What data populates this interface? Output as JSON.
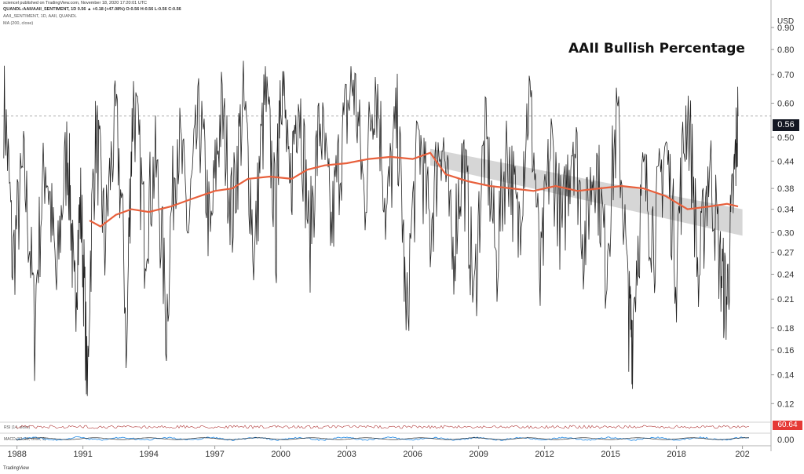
{
  "header": {
    "line1": "sciencel published on TradingView.com, November 18, 2020 17:20:01 UTC",
    "line2": "QUANDL:AAII/AAII_SENTIMENT, 1D  0.56 ▲ +0.18 (+47.08%) O:0.56 H:0.56 L:0.56 C:0.56",
    "line3": "AAII_SENTIMENT, 1D, AAII, QUANDL",
    "line4": "MA (200, close)"
  },
  "price_axis": {
    "currency": "USD",
    "current_value": "0.56",
    "ticks": [
      "0.90",
      "0.80",
      "0.70",
      "0.60",
      "0.50",
      "0.44",
      "0.38",
      "0.34",
      "0.30",
      "0.27",
      "0.24",
      "0.21",
      "0.18",
      "0.16",
      "0.14",
      "0.12"
    ]
  },
  "rsi": {
    "label": "RSI (14, close)",
    "value": "60.64"
  },
  "macd": {
    "label": "MACD (12, 26, close, 9)",
    "zero": "0.00"
  },
  "footer": {
    "logo": "TradingView"
  },
  "colors": {
    "price": "#222222",
    "ma": "#e8603c",
    "channel": "#c8c8c8",
    "rsi": "#b23a3a",
    "macd": "#1e88e5"
  },
  "chart_data": {
    "type": "line",
    "title": "AAII Bullish Percentage",
    "x_ticks": [
      "1988",
      "1991",
      "1994",
      "1997",
      "2000",
      "2003",
      "2006",
      "2009",
      "2012",
      "2015",
      "2018",
      "202"
    ],
    "x_range": [
      1987.3,
      2022.3
    ],
    "y_range": [
      0.11,
      1.0
    ],
    "y_scale": "log",
    "series": [
      {
        "name": "MA (200, close)",
        "x": [
          1991.3,
          1991.8,
          1992.5,
          1993.2,
          1994.0,
          1995.0,
          1996.0,
          1997.0,
          1997.8,
          1998.5,
          1999.5,
          2000.5,
          2001.2,
          2002.0,
          2003.0,
          2004.0,
          2005.0,
          2006.0,
          2006.8,
          2007.5,
          2008.5,
          2009.5,
          2010.5,
          2011.5,
          2012.5,
          2013.5,
          2014.5,
          2015.5,
          2016.5,
          2017.5,
          2018.5,
          2019.5,
          2020.3,
          2020.8
        ],
        "y": [
          0.32,
          0.31,
          0.33,
          0.34,
          0.335,
          0.345,
          0.36,
          0.375,
          0.38,
          0.4,
          0.405,
          0.4,
          0.42,
          0.43,
          0.435,
          0.445,
          0.45,
          0.445,
          0.46,
          0.41,
          0.395,
          0.385,
          0.38,
          0.375,
          0.385,
          0.375,
          0.38,
          0.385,
          0.38,
          0.365,
          0.34,
          0.345,
          0.35,
          0.345
        ]
      },
      {
        "name": "Regression channel upper",
        "x": [
          2006.8,
          2021.0
        ],
        "y": [
          0.47,
          0.34
        ]
      },
      {
        "name": "Regression channel lower",
        "x": [
          2006.8,
          2021.0
        ],
        "y": [
          0.43,
          0.295
        ]
      },
      {
        "name": "AAII_SENTIMENT (sampled)",
        "x": [
          1987.4,
          1987.8,
          1988.3,
          1988.8,
          1989.3,
          1989.8,
          1990.3,
          1990.6,
          1990.9,
          1991.2,
          1991.6,
          1992.0,
          1992.5,
          1993.0,
          1993.3,
          1993.8,
          1994.3,
          1994.8,
          1995.3,
          1995.8,
          1996.3,
          1996.8,
          1997.3,
          1997.8,
          1998.3,
          1998.8,
          1999.3,
          1999.8,
          2000.0,
          2000.4,
          2000.8,
          2001.3,
          2001.8,
          2002.3,
          2002.8,
          2003.3,
          2003.8,
          2004.3,
          2004.8,
          2005.3,
          2005.7,
          2006.3,
          2006.8,
          2007.3,
          2007.8,
          2008.3,
          2008.8,
          2009.3,
          2009.8,
          2010.3,
          2010.8,
          2011.3,
          2011.8,
          2012.3,
          2012.8,
          2013.3,
          2013.8,
          2014.3,
          2014.8,
          2015.3,
          2015.8,
          2016.0,
          2016.5,
          2017.0,
          2017.5,
          2018.0,
          2018.5,
          2019.0,
          2019.5,
          2020.0,
          2020.3,
          2020.6,
          2020.8
        ],
        "y": [
          0.62,
          0.25,
          0.42,
          0.18,
          0.45,
          0.22,
          0.48,
          0.2,
          0.35,
          0.12,
          0.52,
          0.28,
          0.55,
          0.15,
          0.62,
          0.3,
          0.44,
          0.18,
          0.52,
          0.3,
          0.56,
          0.28,
          0.58,
          0.33,
          0.6,
          0.25,
          0.62,
          0.3,
          0.75,
          0.35,
          0.65,
          0.28,
          0.55,
          0.3,
          0.5,
          0.68,
          0.35,
          0.7,
          0.32,
          0.55,
          0.17,
          0.5,
          0.3,
          0.52,
          0.26,
          0.45,
          0.2,
          0.5,
          0.25,
          0.48,
          0.3,
          0.62,
          0.22,
          0.48,
          0.3,
          0.52,
          0.28,
          0.46,
          0.25,
          0.55,
          0.2,
          0.18,
          0.4,
          0.3,
          0.48,
          0.25,
          0.6,
          0.22,
          0.44,
          0.25,
          0.21,
          0.38,
          0.56
        ]
      }
    ]
  }
}
